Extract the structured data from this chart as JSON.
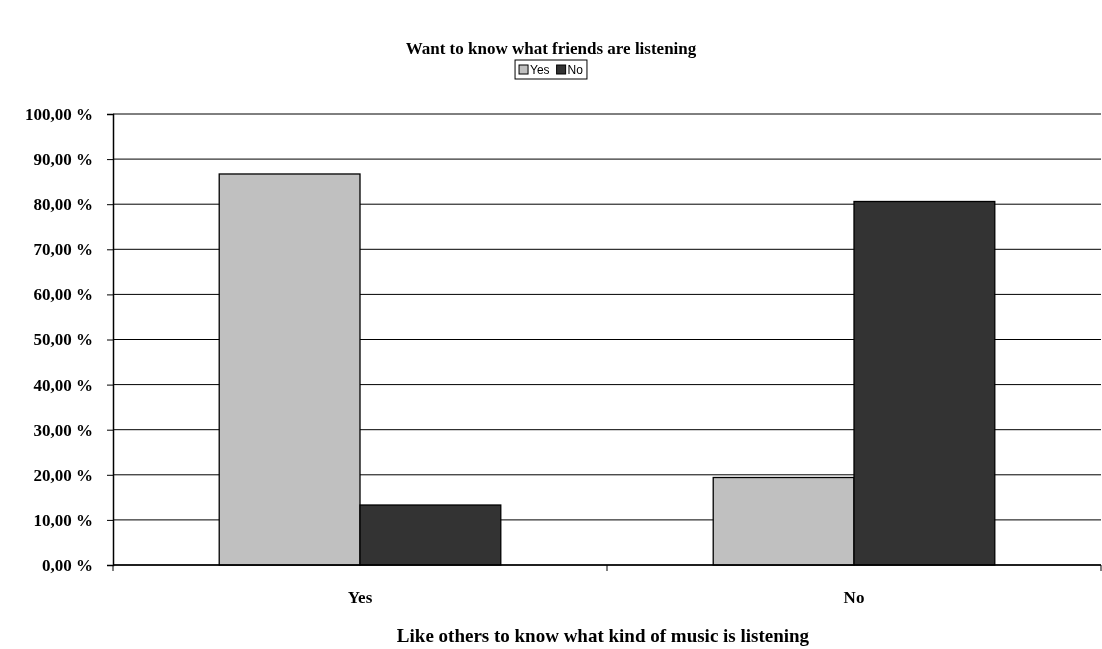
{
  "chart_data": {
    "type": "bar",
    "title": "Want to know what friends are listening",
    "xlabel": "Like others to know what kind of music is listening",
    "categories": [
      "Yes",
      "No"
    ],
    "series": [
      {
        "name": "Yes",
        "color": "#c0c0c0",
        "values": [
          86.7,
          19.4
        ]
      },
      {
        "name": "No",
        "color": "#333333",
        "values": [
          13.3,
          80.6
        ]
      }
    ],
    "ylim": [
      0,
      100
    ],
    "yticks": [
      {
        "value": 0,
        "label": "0,00 %"
      },
      {
        "value": 10,
        "label": "10,00 %"
      },
      {
        "value": 20,
        "label": "20,00 %"
      },
      {
        "value": 30,
        "label": "30,00 %"
      },
      {
        "value": 40,
        "label": "40,00 %"
      },
      {
        "value": 50,
        "label": "50,00 %"
      },
      {
        "value": 60,
        "label": "60,00 %"
      },
      {
        "value": 70,
        "label": "70,00 %"
      },
      {
        "value": 80,
        "label": "80,00 %"
      },
      {
        "value": 90,
        "label": "90,00 %"
      },
      {
        "value": 100,
        "label": "100,00 %"
      }
    ],
    "grid": "y",
    "legend": "top"
  }
}
